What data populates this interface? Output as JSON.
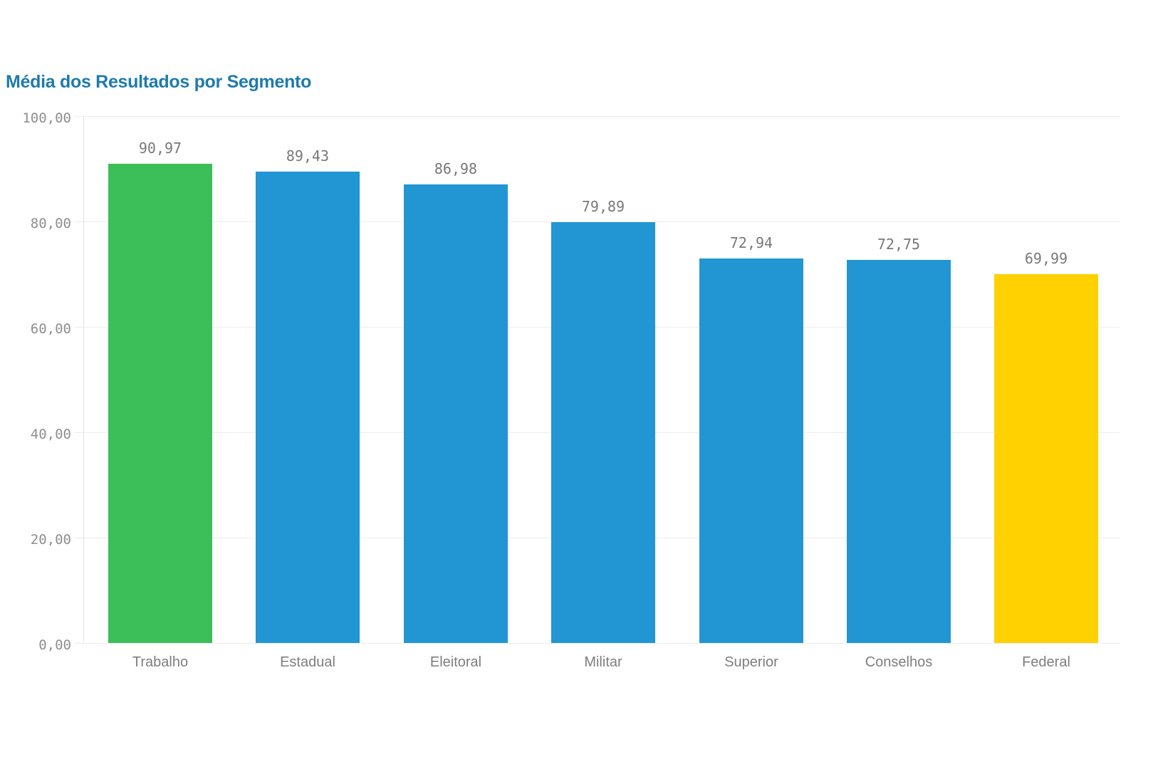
{
  "title": "Média dos Resultados por Segmento",
  "chart_data": {
    "type": "bar",
    "title": "Média dos Resultados por Segmento",
    "categories": [
      "Trabalho",
      "Estadual",
      "Eleitoral",
      "Militar",
      "Superior",
      "Conselhos",
      "Federal"
    ],
    "values": [
      90.97,
      89.43,
      86.98,
      79.89,
      72.94,
      72.75,
      69.99
    ],
    "value_labels": [
      "90,97",
      "89,43",
      "86,98",
      "79,89",
      "72,94",
      "72,75",
      "69,99"
    ],
    "bar_colors": [
      "#3CBE59",
      "#2196D3",
      "#2196D3",
      "#2196D3",
      "#2196D3",
      "#2196D3",
      "#FFD100"
    ],
    "xlabel": "",
    "ylabel": "",
    "ylim": [
      0,
      100
    ],
    "y_tick_values": [
      0,
      20,
      40,
      60,
      80,
      100
    ],
    "y_tick_labels": [
      "0,00",
      "20,00",
      "40,00",
      "60,00",
      "80,00",
      "100,00"
    ],
    "grid": true,
    "legend": false,
    "decimal_separator": ","
  },
  "colors": {
    "title": "#1E7BAC",
    "gridline": "#ECECEC",
    "axis_line": "#E4E4E4",
    "tick_label": "#8E8E8E",
    "value_label": "#787878",
    "category_label": "#7E7E7E",
    "background": "#FFFFFF"
  }
}
